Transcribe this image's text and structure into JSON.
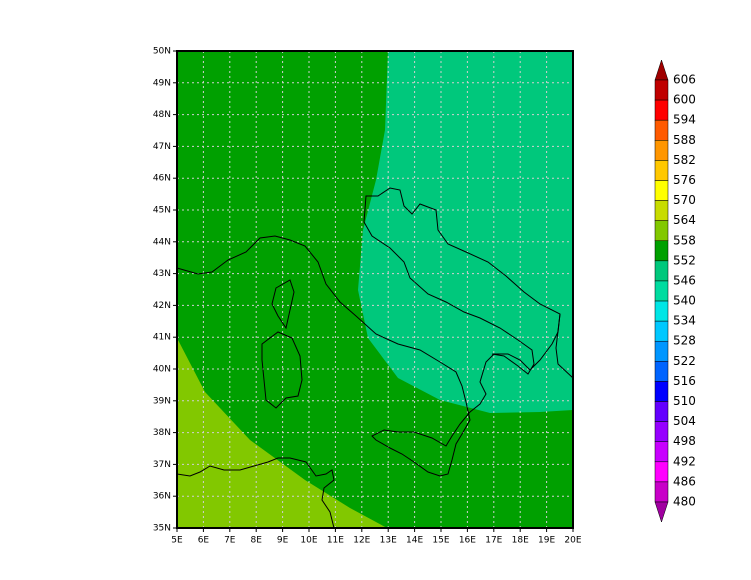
{
  "map": {
    "lon_labels": [
      "5E",
      "6E",
      "7E",
      "8E",
      "9E",
      "10E",
      "11E",
      "12E",
      "13E",
      "14E",
      "15E",
      "16E",
      "17E",
      "18E",
      "19E",
      "20E"
    ],
    "lat_labels": [
      "35N",
      "36N",
      "37N",
      "38N",
      "39N",
      "40N",
      "41N",
      "42N",
      "43N",
      "44N",
      "45N",
      "46N",
      "47N",
      "48N",
      "49N",
      "50N"
    ]
  },
  "legend": {
    "labels": [
      "606",
      "600",
      "594",
      "588",
      "582",
      "576",
      "570",
      "564",
      "558",
      "552",
      "546",
      "540",
      "534",
      "528",
      "522",
      "516",
      "510",
      "504",
      "498",
      "492",
      "486",
      "480"
    ]
  }
}
